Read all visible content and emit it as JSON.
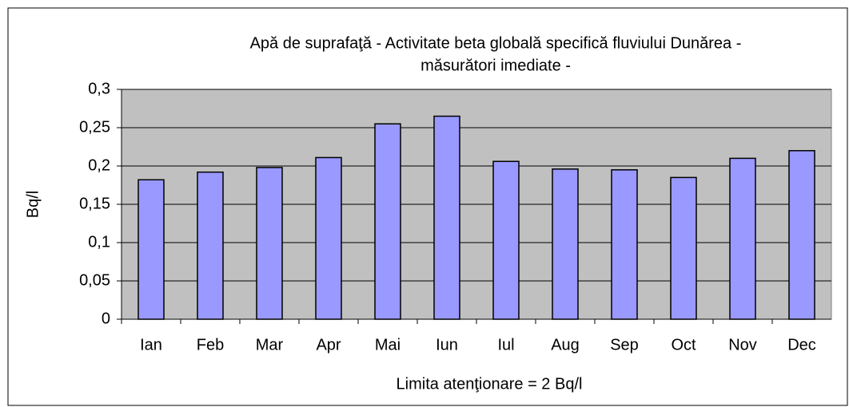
{
  "chart_data": {
    "type": "bar",
    "title": [
      "Apă de suprafaţă - Activitate beta globală specifică fluviului Dunărea -",
      "măsurători imediate -"
    ],
    "y_label": "Bq/l",
    "x_label": "Limita atenţionare = 2 Bq/l",
    "categories": [
      "Ian",
      "Feb",
      "Mar",
      "Apr",
      "Mai",
      "Iun",
      "Iul",
      "Aug",
      "Sep",
      "Oct",
      "Nov",
      "Dec"
    ],
    "values": [
      0.182,
      0.192,
      0.198,
      0.211,
      0.255,
      0.265,
      0.206,
      0.196,
      0.195,
      0.185,
      0.21,
      0.22
    ],
    "color": "#9999ff",
    "ylim": [
      0,
      0.3
    ],
    "yticks": [
      0,
      {
        "value": 0.05,
        "label": "0,05"
      },
      {
        "value": 0.1,
        "label": "0,1"
      },
      {
        "value": 0.15,
        "label": "0,15"
      },
      {
        "value": 0.2,
        "label": "0,2"
      },
      {
        "value": 0.25,
        "label": "0,25"
      },
      {
        "value": 0.3,
        "label": "0,3"
      }
    ],
    "grid": true
  }
}
